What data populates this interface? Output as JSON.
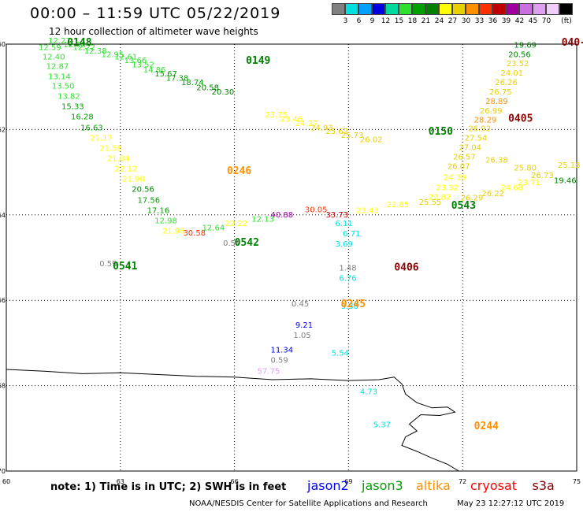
{
  "title": "00:00 – 11:59 UTC 05/22/2019",
  "subtitle": "12 hour collection of altimeter wave heights",
  "legend": {
    "unit": "(ft)",
    "stops": [
      {
        "label": "",
        "color": "#808080"
      },
      {
        "label": "3",
        "color": "#00e0e0"
      },
      {
        "label": "6",
        "color": "#00a0ff"
      },
      {
        "label": "9",
        "color": "#0000e0"
      },
      {
        "label": "12",
        "color": "#00d8a0"
      },
      {
        "label": "15",
        "color": "#30e030"
      },
      {
        "label": "18",
        "color": "#00a000"
      },
      {
        "label": "21",
        "color": "#008000"
      },
      {
        "label": "24",
        "color": "#ffff00"
      },
      {
        "label": "27",
        "color": "#e8d000"
      },
      {
        "label": "30",
        "color": "#ff9000"
      },
      {
        "label": "33",
        "color": "#ff3000"
      },
      {
        "label": "36",
        "color": "#c00000"
      },
      {
        "label": "39",
        "color": "#a000a0"
      },
      {
        "label": "42",
        "color": "#c870e0"
      },
      {
        "label": "45",
        "color": "#e0a0f0"
      },
      {
        "label": "70",
        "color": "#f0d0f8"
      },
      {
        "label": "",
        "color": "#000000"
      }
    ]
  },
  "axes": {
    "lon_ticks": [
      "60",
      "63",
      "66",
      "69",
      "72",
      "75"
    ],
    "lat_ticks": [
      "-60",
      "-62",
      "-64",
      "-66",
      "-68",
      "-70"
    ]
  },
  "map": {
    "lon_range": [
      60,
      75
    ],
    "lat_range": [
      -60,
      -70
    ],
    "coastline": [
      [
        60,
        -67.62
      ],
      [
        61,
        -67.66
      ],
      [
        62,
        -67.72
      ],
      [
        63,
        -67.7
      ],
      [
        64,
        -67.74
      ],
      [
        65,
        -67.78
      ],
      [
        66,
        -67.8
      ],
      [
        67,
        -67.86
      ],
      [
        68,
        -67.84
      ],
      [
        69,
        -67.88
      ],
      [
        69.8,
        -67.86
      ],
      [
        70.2,
        -67.8
      ],
      [
        70.4,
        -67.96
      ],
      [
        70.5,
        -68.2
      ],
      [
        70.8,
        -68.4
      ],
      [
        71.2,
        -68.52
      ],
      [
        71.6,
        -68.5
      ],
      [
        71.8,
        -68.62
      ],
      [
        71.4,
        -68.7
      ],
      [
        70.9,
        -68.68
      ],
      [
        70.6,
        -68.9
      ],
      [
        70.8,
        -69.06
      ],
      [
        70.5,
        -69.2
      ],
      [
        70.4,
        -69.4
      ],
      [
        70.8,
        -69.54
      ],
      [
        71.2,
        -69.7
      ],
      [
        71.6,
        -69.84
      ],
      [
        71.9,
        -70.0
      ]
    ]
  },
  "passes": [
    {
      "name": "0148",
      "color": "#008000",
      "lon": 61.6,
      "lat": -60.04
    },
    {
      "name": "0149",
      "color": "#008000",
      "lon": 66.3,
      "lat": -60.46
    },
    {
      "name": "0150",
      "color": "#008000",
      "lon": 71.1,
      "lat": -62.12
    },
    {
      "name": "0246",
      "color": "#ff9000",
      "lon": 65.8,
      "lat": -63.04
    },
    {
      "name": "0542",
      "color": "#008000",
      "lon": 66.0,
      "lat": -64.72
    },
    {
      "name": "0541",
      "color": "#008000",
      "lon": 62.8,
      "lat": -65.28
    },
    {
      "name": "0543",
      "color": "#008000",
      "lon": 71.7,
      "lat": -63.86
    },
    {
      "name": "0405",
      "color": "#8b0000",
      "lon": 73.2,
      "lat": -61.82
    },
    {
      "name": "0406",
      "color": "#8b0000",
      "lon": 70.2,
      "lat": -65.3
    },
    {
      "name": "0245",
      "color": "#ff9000",
      "lon": 68.8,
      "lat": -66.16
    },
    {
      "name": "0244",
      "color": "#ff9000",
      "lon": 72.3,
      "lat": -69.02
    },
    {
      "name": "040-",
      "color": "#8b0000",
      "lon": 74.6,
      "lat": -60.04
    }
  ],
  "wave_heights": [
    {
      "v": "12.27",
      "c": "#30e030",
      "lon": 61.1,
      "lat": -59.98
    },
    {
      "v": "12.06",
      "c": "#30e030",
      "lon": 61.5,
      "lat": -60.07
    },
    {
      "v": "12.22",
      "c": "#30e030",
      "lon": 61.75,
      "lat": -60.14
    },
    {
      "v": "12.38",
      "c": "#30e030",
      "lon": 62.05,
      "lat": -60.22
    },
    {
      "v": "12.95",
      "c": "#30e030",
      "lon": 62.5,
      "lat": -60.3
    },
    {
      "v": "12.61",
      "c": "#30e030",
      "lon": 62.85,
      "lat": -60.36
    },
    {
      "v": "13.66",
      "c": "#30e030",
      "lon": 63.1,
      "lat": -60.44
    },
    {
      "v": "13.52",
      "c": "#30e030",
      "lon": 63.3,
      "lat": -60.54
    },
    {
      "v": "14.86",
      "c": "#30e030",
      "lon": 63.6,
      "lat": -60.66
    },
    {
      "v": "15.67",
      "c": "#00a000",
      "lon": 63.9,
      "lat": -60.76
    },
    {
      "v": "17.38",
      "c": "#00a000",
      "lon": 64.2,
      "lat": -60.86
    },
    {
      "v": "18.74",
      "c": "#00a000",
      "lon": 64.6,
      "lat": -60.96
    },
    {
      "v": "20.58",
      "c": "#008000",
      "lon": 65.0,
      "lat": -61.08
    },
    {
      "v": "20.30",
      "c": "#008000",
      "lon": 65.4,
      "lat": -61.18
    },
    {
      "v": "23.75",
      "c": "#ffff00",
      "lon": 66.8,
      "lat": -61.72
    },
    {
      "v": "23.46",
      "c": "#ffff00",
      "lon": 67.2,
      "lat": -61.82
    },
    {
      "v": "24.27",
      "c": "#ffff00",
      "lon": 67.6,
      "lat": -61.92
    },
    {
      "v": "24.93",
      "c": "#e8d000",
      "lon": 68.0,
      "lat": -62.02
    },
    {
      "v": "25.62",
      "c": "#e8d000",
      "lon": 68.4,
      "lat": -62.1
    },
    {
      "v": "25.73",
      "c": "#e8d000",
      "lon": 68.8,
      "lat": -62.2
    },
    {
      "v": "26.02",
      "c": "#e8d000",
      "lon": 69.3,
      "lat": -62.3
    },
    {
      "v": "12.59",
      "c": "#30e030",
      "lon": 60.85,
      "lat": -60.14
    },
    {
      "v": "12.40",
      "c": "#30e030",
      "lon": 60.95,
      "lat": -60.36
    },
    {
      "v": "12.87",
      "c": "#30e030",
      "lon": 61.05,
      "lat": -60.58
    },
    {
      "v": "13.14",
      "c": "#30e030",
      "lon": 61.1,
      "lat": -60.82
    },
    {
      "v": "13.50",
      "c": "#30e030",
      "lon": 61.2,
      "lat": -61.04
    },
    {
      "v": "13.82",
      "c": "#30e030",
      "lon": 61.35,
      "lat": -61.28
    },
    {
      "v": "15.33",
      "c": "#00a000",
      "lon": 61.45,
      "lat": -61.52
    },
    {
      "v": "16.28",
      "c": "#00a000",
      "lon": 61.7,
      "lat": -61.76
    },
    {
      "v": "16.63",
      "c": "#00a000",
      "lon": 61.95,
      "lat": -62.02
    },
    {
      "v": "21.17",
      "c": "#ffff00",
      "lon": 62.2,
      "lat": -62.26
    },
    {
      "v": "21.58",
      "c": "#ffff00",
      "lon": 62.45,
      "lat": -62.5
    },
    {
      "v": "21.04",
      "c": "#ffff00",
      "lon": 62.65,
      "lat": -62.74
    },
    {
      "v": "22.12",
      "c": "#ffff00",
      "lon": 62.85,
      "lat": -62.98
    },
    {
      "v": "21.98",
      "c": "#ffff00",
      "lon": 63.05,
      "lat": -63.22
    },
    {
      "v": "20.56",
      "c": "#008000",
      "lon": 63.3,
      "lat": -63.46
    },
    {
      "v": "17.56",
      "c": "#00a000",
      "lon": 63.45,
      "lat": -63.72
    },
    {
      "v": "17.16",
      "c": "#00a000",
      "lon": 63.7,
      "lat": -63.96
    },
    {
      "v": "12.98",
      "c": "#30e030",
      "lon": 63.9,
      "lat": -64.2
    },
    {
      "v": "21.98",
      "c": "#ffff00",
      "lon": 64.1,
      "lat": -64.44
    },
    {
      "v": "30.58",
      "c": "#ff3000",
      "lon": 64.65,
      "lat": -64.48
    },
    {
      "v": "12.64",
      "c": "#30e030",
      "lon": 65.15,
      "lat": -64.36
    },
    {
      "v": "22.22",
      "c": "#ffff00",
      "lon": 65.75,
      "lat": -64.26
    },
    {
      "v": "12.13",
      "c": "#30e030",
      "lon": 66.45,
      "lat": -64.16
    },
    {
      "v": "40.88",
      "c": "#a000a0",
      "lon": 66.95,
      "lat": -64.06
    },
    {
      "v": "30.05",
      "c": "#ff3000",
      "lon": 67.85,
      "lat": -63.94
    },
    {
      "v": "33.73",
      "c": "#c00000",
      "lon": 68.4,
      "lat": -64.06
    },
    {
      "v": "6.71",
      "c": "#00e0e0",
      "lon": 68.85,
      "lat": -64.5
    },
    {
      "v": "6.11",
      "c": "#00e0e0",
      "lon": 68.65,
      "lat": -64.26
    },
    {
      "v": "3.69",
      "c": "#00e0e0",
      "lon": 68.65,
      "lat": -64.74
    },
    {
      "v": "1.48",
      "c": "#808080",
      "lon": 68.75,
      "lat": -65.3
    },
    {
      "v": "6.76",
      "c": "#00e0e0",
      "lon": 68.75,
      "lat": -65.54
    },
    {
      "v": "0.59",
      "c": "#808080",
      "lon": 62.45,
      "lat": -65.2
    },
    {
      "v": "0.59",
      "c": "#808080",
      "lon": 65.7,
      "lat": -64.72
    },
    {
      "v": "0.45",
      "c": "#808080",
      "lon": 67.5,
      "lat": -66.14
    },
    {
      "v": "9.21",
      "c": "#0000e0",
      "lon": 67.6,
      "lat": -66.64
    },
    {
      "v": "1.05",
      "c": "#808080",
      "lon": 67.55,
      "lat": -66.88
    },
    {
      "v": "11.34",
      "c": "#0000e0",
      "lon": 66.95,
      "lat": -67.22
    },
    {
      "v": "0.59",
      "c": "#808080",
      "lon": 66.95,
      "lat": -67.46
    },
    {
      "v": "57.75",
      "c": "#e0a0f0",
      "lon": 66.6,
      "lat": -67.72
    },
    {
      "v": "5.54",
      "c": "#00e0e0",
      "lon": 68.55,
      "lat": -67.3
    },
    {
      "v": "4.73",
      "c": "#00e0e0",
      "lon": 69.3,
      "lat": -68.2
    },
    {
      "v": "5.37",
      "c": "#00e0e0",
      "lon": 69.65,
      "lat": -68.98
    },
    {
      "v": "9.38",
      "c": "#00e0e0",
      "lon": 68.8,
      "lat": -66.2
    },
    {
      "v": "19.69",
      "c": "#008000",
      "lon": 73.35,
      "lat": -60.08
    },
    {
      "v": "20.56",
      "c": "#008000",
      "lon": 73.2,
      "lat": -60.3
    },
    {
      "v": "23.52",
      "c": "#e8d000",
      "lon": 73.15,
      "lat": -60.52
    },
    {
      "v": "24.01",
      "c": "#e8d000",
      "lon": 73.0,
      "lat": -60.74
    },
    {
      "v": "26.26",
      "c": "#e8d000",
      "lon": 72.85,
      "lat": -60.96
    },
    {
      "v": "26.75",
      "c": "#e8d000",
      "lon": 72.7,
      "lat": -61.18
    },
    {
      "v": "28.89",
      "c": "#ff9000",
      "lon": 72.6,
      "lat": -61.4
    },
    {
      "v": "26.99",
      "c": "#e8d000",
      "lon": 72.45,
      "lat": -61.62
    },
    {
      "v": "28.29",
      "c": "#ff9000",
      "lon": 72.3,
      "lat": -61.84
    },
    {
      "v": "26.92",
      "c": "#e8d000",
      "lon": 72.15,
      "lat": -62.04
    },
    {
      "v": "27.54",
      "c": "#e8d000",
      "lon": 72.05,
      "lat": -62.26
    },
    {
      "v": "27.04",
      "c": "#e8d000",
      "lon": 71.9,
      "lat": -62.48
    },
    {
      "v": "26.57",
      "c": "#e8d000",
      "lon": 71.75,
      "lat": -62.7
    },
    {
      "v": "26.07",
      "c": "#e8d000",
      "lon": 71.6,
      "lat": -62.92
    },
    {
      "v": "24.39",
      "c": "#ffff00",
      "lon": 71.5,
      "lat": -63.18
    },
    {
      "v": "23.32",
      "c": "#ffff00",
      "lon": 71.3,
      "lat": -63.42
    },
    {
      "v": "22.82",
      "c": "#ffff00",
      "lon": 71.1,
      "lat": -63.64
    },
    {
      "v": "25.55",
      "c": "#e8d000",
      "lon": 70.85,
      "lat": -63.76
    },
    {
      "v": "26.29",
      "c": "#e8d000",
      "lon": 71.95,
      "lat": -63.66
    },
    {
      "v": "26.22",
      "c": "#e8d000",
      "lon": 72.5,
      "lat": -63.56
    },
    {
      "v": "24.68",
      "c": "#ffff00",
      "lon": 73.0,
      "lat": -63.42
    },
    {
      "v": "23.71",
      "c": "#ffff00",
      "lon": 73.45,
      "lat": -63.3
    },
    {
      "v": "26.73",
      "c": "#e8d000",
      "lon": 73.8,
      "lat": -63.14
    },
    {
      "v": "25.80",
      "c": "#e8d000",
      "lon": 73.35,
      "lat": -62.96
    },
    {
      "v": "26.38",
      "c": "#e8d000",
      "lon": 72.6,
      "lat": -62.78
    },
    {
      "v": "25.18",
      "c": "#e8d000",
      "lon": 74.5,
      "lat": -62.9
    },
    {
      "v": "19.46",
      "c": "#008000",
      "lon": 74.4,
      "lat": -63.26
    },
    {
      "v": "22.85",
      "c": "#ffff00",
      "lon": 70.0,
      "lat": -63.82
    },
    {
      "v": "23.43",
      "c": "#ffff00",
      "lon": 69.2,
      "lat": -63.96
    }
  ],
  "footer": {
    "note": "note:  1) Time is in UTC;  2) SWH is in feet",
    "satellites": [
      {
        "name": "jason2",
        "color": "#0000ff"
      },
      {
        "name": "jason3",
        "color": "#00a000"
      },
      {
        "name": "altika",
        "color": "#ff9000"
      },
      {
        "name": "cryosat",
        "color": "#ff0000"
      },
      {
        "name": "s3a",
        "color": "#8b0000"
      }
    ],
    "credit": "NOAA/NESDIS Center for Satellite Applications and Research",
    "timestamp": "May 23 12:27:12 UTC 2019"
  }
}
